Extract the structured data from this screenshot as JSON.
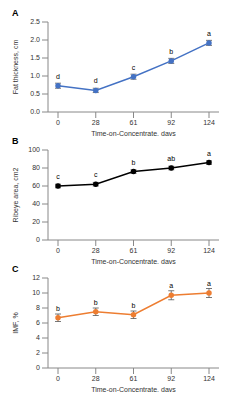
{
  "chart_data": [
    {
      "type": "line",
      "title": "A",
      "x_label": "Time-on-Concentrate, days",
      "y_label": "Fat thickness, cm",
      "categories": [
        "0",
        "28",
        "61",
        "92",
        "124"
      ],
      "values": [
        0.73,
        0.6,
        0.98,
        1.42,
        1.92
      ],
      "errors": [
        0.07,
        0.06,
        0.07,
        0.07,
        0.07
      ],
      "annotations": [
        "d",
        "d",
        "c",
        "b",
        "a"
      ],
      "color": "#4472c4",
      "marker": "circle",
      "line_style": "solid",
      "ylim": [
        0,
        2.5
      ],
      "yticks": [
        {
          "value": 0,
          "label": "0.0"
        },
        {
          "value": 0.5,
          "label": "0.5"
        },
        {
          "value": 1,
          "label": "1.0"
        },
        {
          "value": 1.5,
          "label": "1.5"
        },
        {
          "value": 2,
          "label": "2.0"
        },
        {
          "value": 2.5,
          "label": "2.5"
        }
      ],
      "grid": false
    },
    {
      "type": "line",
      "title": "B",
      "x_label": "Time-on-Concentrate, days",
      "y_label": "Ribeye area, cm2",
      "categories": [
        "0",
        "28",
        "61",
        "92",
        "124"
      ],
      "values": [
        60,
        62,
        76,
        80,
        86
      ],
      "errors": [
        2,
        2,
        2,
        2,
        2
      ],
      "annotations": [
        "c",
        "c",
        "b",
        "ab",
        "a"
      ],
      "color": "#000000",
      "marker": "circle",
      "line_style": "solid",
      "ylim": [
        0,
        100
      ],
      "yticks": [
        0,
        20,
        40,
        60,
        80,
        100
      ],
      "grid": false
    },
    {
      "type": "line",
      "title": "C",
      "x_label": "Time-on-Concentrate, days",
      "y_label": "IMF, %",
      "categories": [
        "0",
        "28",
        "61",
        "92",
        "124"
      ],
      "values": [
        6.7,
        7.5,
        7.1,
        9.7,
        10.0
      ],
      "errors": [
        0.5,
        0.5,
        0.5,
        0.6,
        0.6
      ],
      "annotations": [
        "b",
        "b",
        "b",
        "a",
        "a"
      ],
      "color": "#ed7d31",
      "marker": "circle",
      "line_style": "solid",
      "ylim": [
        0,
        12
      ],
      "yticks": [
        0,
        2,
        4,
        6,
        8,
        10,
        12
      ],
      "grid": false
    }
  ]
}
